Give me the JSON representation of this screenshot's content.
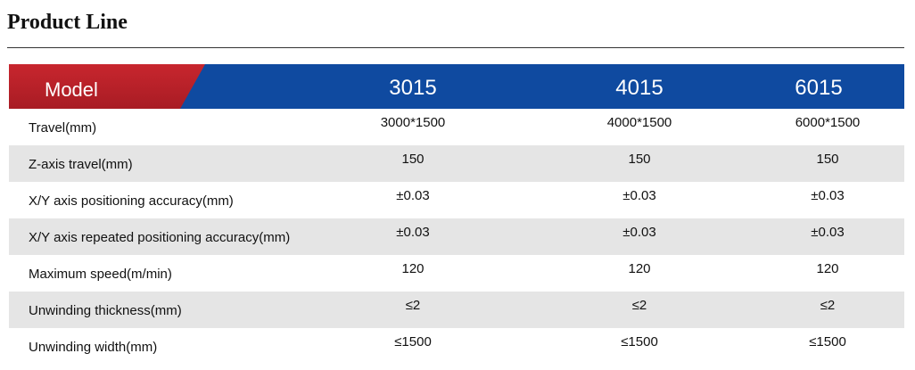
{
  "title": "Product Line",
  "colors": {
    "header_blue": "#0f4aa0",
    "header_red": "#b8222a",
    "row_shade": "#e5e5e5"
  },
  "table": {
    "header_label": "Model",
    "models": [
      "3015",
      "4015",
      "6015"
    ],
    "rows": [
      {
        "label": "Travel(mm)",
        "values": [
          "3000*1500",
          "4000*1500",
          "6000*1500"
        ]
      },
      {
        "label": "Z-axis travel(mm)",
        "values": [
          "150",
          "150",
          "150"
        ]
      },
      {
        "label": "X/Y axis positioning accuracy(mm)",
        "values": [
          "±0.03",
          "±0.03",
          "±0.03"
        ]
      },
      {
        "label": "X/Y axis repeated positioning accuracy(mm)",
        "values": [
          "±0.03",
          "±0.03",
          "±0.03"
        ]
      },
      {
        "label": "Maximum speed(m/min)",
        "values": [
          "120",
          "120",
          "120"
        ]
      },
      {
        "label": "Unwinding thickness(mm)",
        "values": [
          "≤2",
          "≤2",
          "≤2"
        ]
      },
      {
        "label": "Unwinding width(mm)",
        "values": [
          "≤1500",
          "≤1500",
          "≤1500"
        ]
      }
    ]
  }
}
